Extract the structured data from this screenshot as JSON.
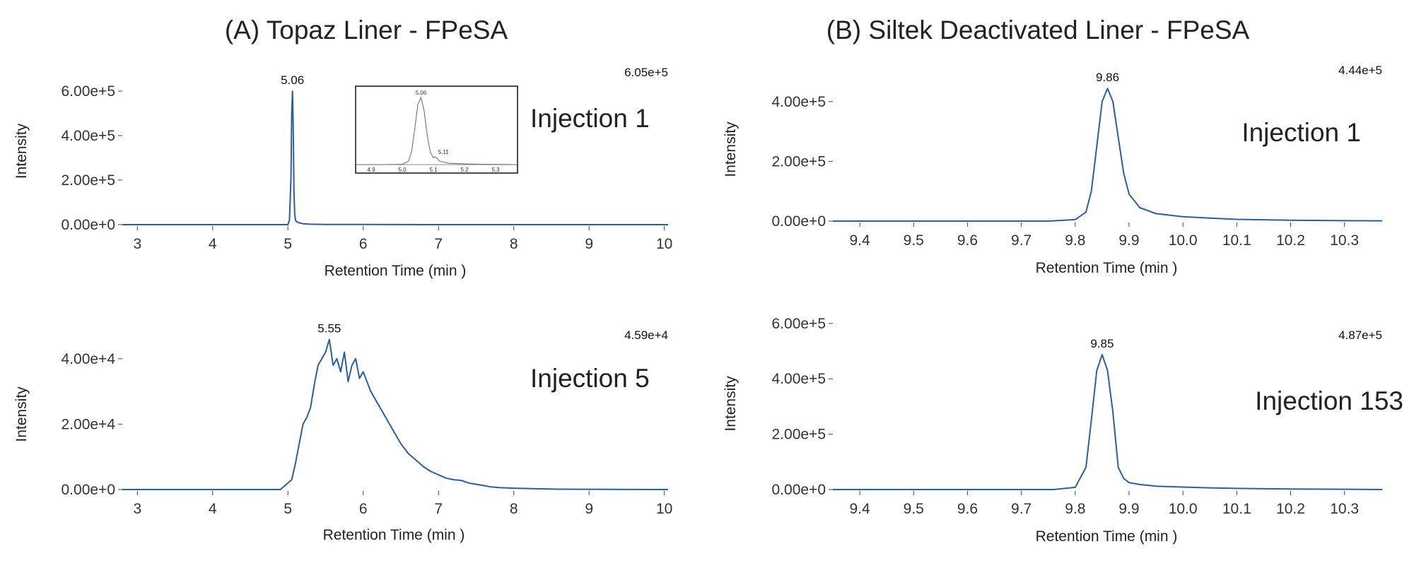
{
  "panels": [
    {
      "title": "(A) Topaz Liner - FPeSA"
    },
    {
      "title": "(B) Siltek Deactivated Liner - FPeSA"
    }
  ],
  "chart_data": [
    {
      "type": "line",
      "panel": "A",
      "annotation": "Injection 1",
      "max_label": "6.05e+5",
      "peak_label": "5.06",
      "xlabel": "Retention Time   (min )",
      "ylabel": "Intensity",
      "xlim": [
        2.8,
        10.05
      ],
      "ylim": [
        -5000.0,
        660000.0
      ],
      "xticks": [
        3,
        4,
        5,
        6,
        7,
        8,
        9,
        10
      ],
      "xtick_labels": [
        "3",
        "4",
        "5",
        "6",
        "7",
        "8",
        "9",
        "10"
      ],
      "yticks": [
        0,
        200000,
        400000,
        600000
      ],
      "ytick_labels": [
        "0.00e+0",
        "2.00e+5",
        "4.00e+5",
        "6.00e+5"
      ],
      "color": "#2b5f9e",
      "series": [
        {
          "x": [
            2.8,
            4.9,
            5.0,
            5.02,
            5.04,
            5.05,
            5.06,
            5.07,
            5.08,
            5.09,
            5.1,
            5.12,
            5.15,
            5.2,
            5.3,
            5.5,
            6.0,
            7.0,
            10.05
          ],
          "y": [
            0,
            0,
            0,
            20000,
            200000,
            500000,
            600000,
            450000,
            150000,
            50000,
            20000,
            12000,
            8000,
            4000,
            2000,
            1000,
            500,
            0,
            0
          ]
        }
      ],
      "inset": {
        "xlim": [
          4.85,
          5.37
        ],
        "ylim": [
          -40000,
          650000
        ],
        "xticks": [
          4.9,
          5.0,
          5.1,
          5.2,
          5.3
        ],
        "xtick_labels": [
          "4.9",
          "5.0",
          "5.1",
          "5.2",
          "5.3"
        ],
        "peak_label": "5.06",
        "shoulder_label": "5.11",
        "x": [
          4.85,
          4.95,
          5.0,
          5.02,
          5.03,
          5.04,
          5.05,
          5.06,
          5.07,
          5.08,
          5.09,
          5.1,
          5.105,
          5.11,
          5.12,
          5.15,
          5.2,
          5.25,
          5.37
        ],
        "y": [
          0,
          0,
          3000,
          30000,
          120000,
          320000,
          540000,
          600000,
          480000,
          260000,
          110000,
          60000,
          70000,
          60000,
          30000,
          12000,
          6000,
          3000,
          0
        ]
      }
    },
    {
      "type": "line",
      "panel": "A",
      "annotation": "Injection 5",
      "max_label": "4.59e+4",
      "peak_label": "5.55",
      "xlabel": "Retention Time   (min )",
      "ylabel": "Intensity",
      "xlim": [
        2.8,
        10.05
      ],
      "ylim": [
        -500,
        46000
      ],
      "xticks": [
        3,
        4,
        5,
        6,
        7,
        8,
        9,
        10
      ],
      "xtick_labels": [
        "3",
        "4",
        "5",
        "6",
        "7",
        "8",
        "9",
        "10"
      ],
      "yticks": [
        0,
        20000,
        40000
      ],
      "ytick_labels": [
        "0.00e+0",
        "2.00e+4",
        "4.00e+4"
      ],
      "color": "#2b5f9e",
      "series": [
        {
          "x": [
            2.8,
            4.9,
            5.05,
            5.1,
            5.15,
            5.2,
            5.25,
            5.3,
            5.35,
            5.4,
            5.45,
            5.5,
            5.55,
            5.6,
            5.65,
            5.7,
            5.75,
            5.8,
            5.85,
            5.9,
            5.95,
            6.0,
            6.1,
            6.2,
            6.3,
            6.4,
            6.5,
            6.6,
            6.7,
            6.8,
            6.9,
            7.0,
            7.1,
            7.2,
            7.3,
            7.4,
            7.5,
            7.6,
            7.7,
            7.8,
            8.0,
            8.2,
            8.4,
            8.6,
            10.05
          ],
          "y": [
            0,
            0,
            3000,
            8000,
            14000,
            20000,
            22000,
            25000,
            32000,
            38000,
            40000,
            42000,
            45900,
            38000,
            40000,
            36000,
            42000,
            33000,
            38000,
            40000,
            34000,
            36000,
            30000,
            26000,
            22000,
            18000,
            14000,
            11000,
            9000,
            7000,
            5500,
            4500,
            3500,
            3000,
            2800,
            2000,
            1600,
            1200,
            800,
            600,
            400,
            300,
            200,
            100,
            0
          ]
        }
      ]
    },
    {
      "type": "line",
      "panel": "B",
      "annotation": "Injection 1",
      "max_label": "4.44e+5",
      "peak_label": "9.86",
      "xlabel": "Retention Time   (min )",
      "ylabel": "Intensity",
      "xlim": [
        9.35,
        10.37
      ],
      "ylim": [
        -10000,
        480000
      ],
      "xticks": [
        9.4,
        9.5,
        9.6,
        9.7,
        9.8,
        9.9,
        10.0,
        10.1,
        10.2,
        10.3
      ],
      "xtick_labels": [
        "9.4",
        "9.5",
        "9.6",
        "9.7",
        "9.8",
        "9.9",
        "10.0",
        "10.1",
        "10.2",
        "10.3"
      ],
      "yticks": [
        0,
        200000,
        400000
      ],
      "ytick_labels": [
        "0.00e+0",
        "2.00e+5",
        "4.00e+5"
      ],
      "color": "#2b5f9e",
      "series": [
        {
          "x": [
            9.35,
            9.75,
            9.8,
            9.82,
            9.83,
            9.84,
            9.85,
            9.86,
            9.87,
            9.88,
            9.89,
            9.9,
            9.92,
            9.95,
            10.0,
            10.05,
            10.1,
            10.2,
            10.3,
            10.37
          ],
          "y": [
            0,
            0,
            5000,
            30000,
            100000,
            250000,
            400000,
            444000,
            400000,
            280000,
            160000,
            90000,
            45000,
            25000,
            15000,
            10000,
            6000,
            3000,
            1500,
            1000
          ]
        }
      ]
    },
    {
      "type": "line",
      "panel": "B",
      "annotation": "Injection 153",
      "max_label": "4.87e+5",
      "peak_label": "9.85",
      "xlabel": "Retention Time   (min )",
      "ylabel": "Intensity",
      "xlim": [
        9.35,
        10.37
      ],
      "ylim": [
        -10000,
        620000
      ],
      "xticks": [
        9.4,
        9.5,
        9.6,
        9.7,
        9.8,
        9.9,
        10.0,
        10.1,
        10.2,
        10.3
      ],
      "xtick_labels": [
        "9.4",
        "9.5",
        "9.6",
        "9.7",
        "9.8",
        "9.9",
        "10.0",
        "10.1",
        "10.2",
        "10.3"
      ],
      "yticks": [
        0,
        200000,
        400000,
        600000
      ],
      "ytick_labels": [
        "0.00e+0",
        "2.00e+5",
        "4.00e+5",
        "6.00e+5"
      ],
      "color": "#2b5f9e",
      "series": [
        {
          "x": [
            9.35,
            9.76,
            9.8,
            9.82,
            9.83,
            9.84,
            9.85,
            9.86,
            9.87,
            9.875,
            9.88,
            9.89,
            9.9,
            9.92,
            9.95,
            10.0,
            10.05,
            10.1,
            10.2,
            10.3,
            10.37
          ],
          "y": [
            0,
            0,
            8000,
            80000,
            250000,
            430000,
            487000,
            430000,
            280000,
            180000,
            80000,
            40000,
            25000,
            18000,
            12000,
            9000,
            6000,
            4000,
            2000,
            1000,
            0
          ]
        }
      ]
    }
  ]
}
